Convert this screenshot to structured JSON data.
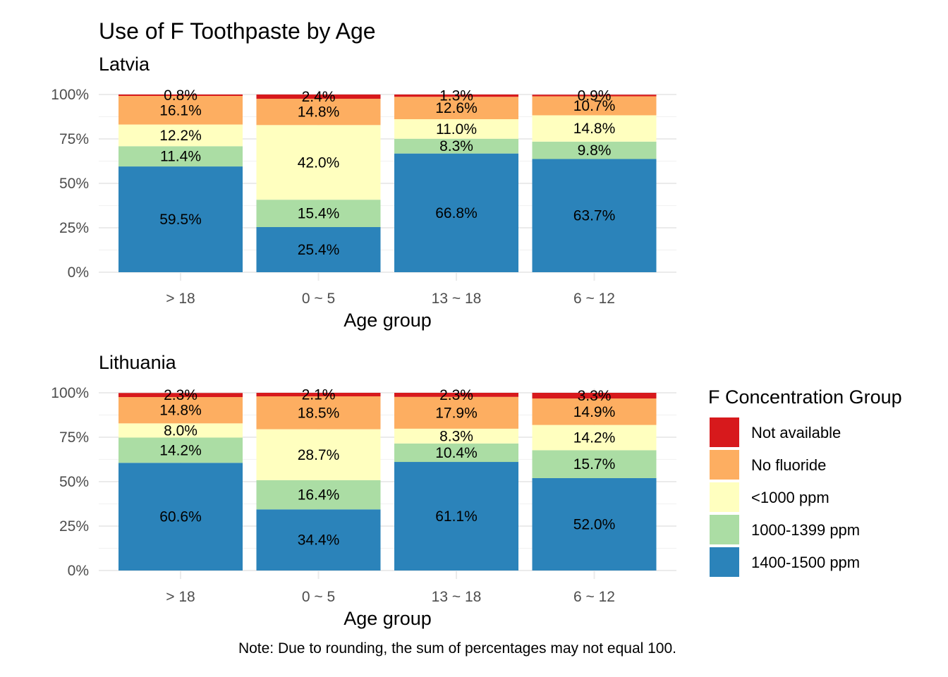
{
  "title": "Use of F Toothpaste by Age",
  "note": "Note: Due to rounding, the sum of percentages may not equal 100.",
  "legend": {
    "title": "F Concentration Group",
    "items": [
      {
        "label": "Not available",
        "color": "#d7191c"
      },
      {
        "label": "No fluoride",
        "color": "#fdae61"
      },
      {
        "label": "<1000 ppm",
        "color": "#ffffbf"
      },
      {
        "label": "1000-1399 ppm",
        "color": "#abdda4"
      },
      {
        "label": "1400-1500 ppm",
        "color": "#2b83ba"
      }
    ]
  },
  "chart_data": [
    {
      "type": "bar",
      "stacked": true,
      "subtitle": "Latvia",
      "xlabel": "Age group",
      "ylabel": "",
      "ylim": [
        0,
        100
      ],
      "yticks": [
        "0%",
        "25%",
        "50%",
        "75%",
        "100%"
      ],
      "categories": [
        "> 18",
        "0 ~ 5",
        "13 ~ 18",
        "6 ~ 12"
      ],
      "series": [
        {
          "name": "1400-1500 ppm",
          "values": [
            59.5,
            25.4,
            66.8,
            63.7
          ],
          "labels": [
            "59.5%",
            "25.4%",
            "66.8%",
            "63.7%"
          ]
        },
        {
          "name": "1000-1399 ppm",
          "values": [
            11.4,
            15.4,
            8.3,
            9.8
          ],
          "labels": [
            "11.4%",
            "15.4%",
            "8.3%",
            "9.8%"
          ]
        },
        {
          "name": "<1000 ppm",
          "values": [
            12.2,
            42.0,
            11.0,
            14.8
          ],
          "labels": [
            "12.2%",
            "42.0%",
            "11.0%",
            "14.8%"
          ]
        },
        {
          "name": "No fluoride",
          "values": [
            16.1,
            14.8,
            12.6,
            10.7
          ],
          "labels": [
            "16.1%",
            "14.8%",
            "12.6%",
            "10.7%"
          ]
        },
        {
          "name": "Not available",
          "values": [
            0.8,
            2.4,
            1.3,
            0.9
          ],
          "labels": [
            "0.8%",
            "2.4%",
            "1.3%",
            "0.9%"
          ]
        }
      ]
    },
    {
      "type": "bar",
      "stacked": true,
      "subtitle": "Lithuania",
      "xlabel": "Age group",
      "ylabel": "",
      "ylim": [
        0,
        100
      ],
      "yticks": [
        "0%",
        "25%",
        "50%",
        "75%",
        "100%"
      ],
      "categories": [
        "> 18",
        "0 ~ 5",
        "13 ~ 18",
        "6 ~ 12"
      ],
      "series": [
        {
          "name": "1400-1500 ppm",
          "values": [
            60.6,
            34.4,
            61.1,
            52.0
          ],
          "labels": [
            "60.6%",
            "34.4%",
            "61.1%",
            "52.0%"
          ]
        },
        {
          "name": "1000-1399 ppm",
          "values": [
            14.2,
            16.4,
            10.4,
            15.7
          ],
          "labels": [
            "14.2%",
            "16.4%",
            "10.4%",
            "15.7%"
          ]
        },
        {
          "name": "<1000 ppm",
          "values": [
            8.0,
            28.7,
            8.3,
            14.2
          ],
          "labels": [
            "8.0%",
            "28.7%",
            "8.3%",
            "14.2%"
          ]
        },
        {
          "name": "No fluoride",
          "values": [
            14.8,
            18.5,
            17.9,
            14.9
          ],
          "labels": [
            "14.8%",
            "18.5%",
            "17.9%",
            "14.9%"
          ]
        },
        {
          "name": "Not available",
          "values": [
            2.3,
            2.1,
            2.3,
            3.3
          ],
          "labels": [
            "2.3%",
            "2.1%",
            "2.3%",
            "3.3%"
          ]
        }
      ]
    }
  ]
}
